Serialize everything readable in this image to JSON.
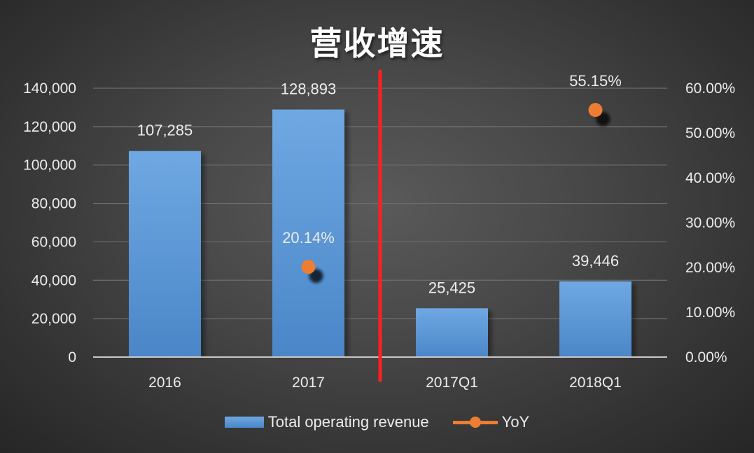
{
  "chart_data": {
    "type": "bar",
    "title": "营收增速",
    "categories": [
      "2016",
      "2017",
      "2017Q1",
      "2018Q1"
    ],
    "series": [
      {
        "name": "Total operating revenue",
        "kind": "bar",
        "axis": "left",
        "values": [
          107285,
          128893,
          25425,
          39446
        ],
        "labels": [
          "107,285",
          "128,893",
          "25,425",
          "39,446"
        ],
        "color": "#5b9bd5"
      },
      {
        "name": "YoY",
        "kind": "line-markers",
        "axis": "right",
        "values": [
          null,
          20.14,
          null,
          55.15
        ],
        "labels": [
          null,
          "20.14%",
          null,
          "55.15%"
        ],
        "color": "#ed7d31"
      }
    ],
    "ylim_left": [
      0,
      140000
    ],
    "yticks_left": [
      "0",
      "20,000",
      "40,000",
      "60,000",
      "80,000",
      "100,000",
      "120,000",
      "140,000"
    ],
    "ylim_right": [
      0,
      60
    ],
    "yticks_right": [
      "0.00%",
      "10.00%",
      "20.00%",
      "30.00%",
      "40.00%",
      "50.00%",
      "60.00%"
    ],
    "divider_color": "#ff2020",
    "gridlines": true,
    "legend_position": "bottom"
  }
}
